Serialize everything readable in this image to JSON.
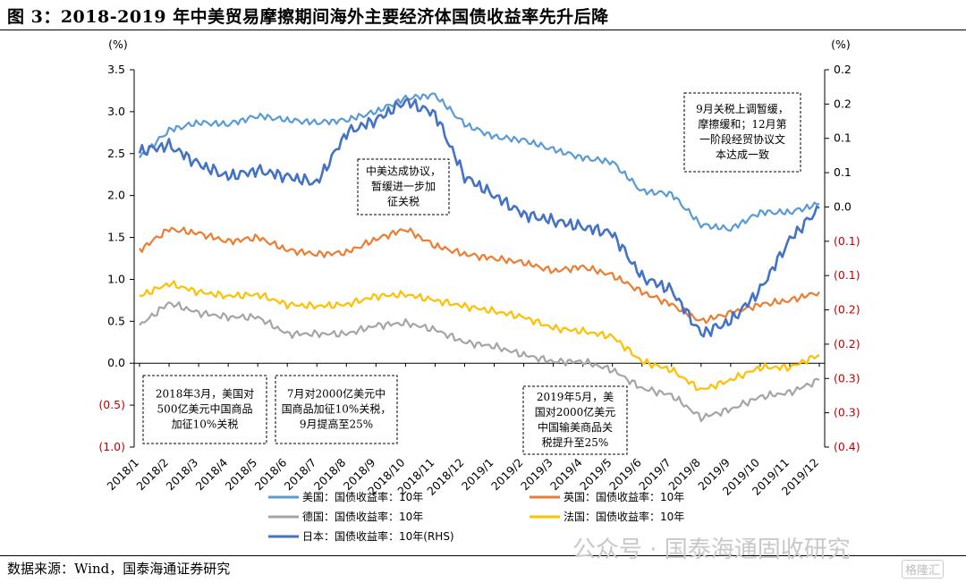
{
  "header": {
    "title": "图 3：2018-2019 年中美贸易摩擦期间海外主要经济体国债收益率先升后降"
  },
  "footer": {
    "source": "数据来源：Wind，国泰海通证券研究"
  },
  "watermark": {
    "text": "公众号 · 国泰海通固收研究",
    "badge": "格隆汇"
  },
  "chart_data": {
    "type": "line",
    "x_ticks": [
      "2018/1",
      "2018/2",
      "2018/3",
      "2018/4",
      "2018/5",
      "2018/6",
      "2018/7",
      "2018/8",
      "2018/9",
      "2018/10",
      "2018/11",
      "2018/12",
      "2019/1",
      "2019/2",
      "2019/3",
      "2019/4",
      "2019/5",
      "2019/6",
      "2019/7",
      "2019/8",
      "2019/9",
      "2019/10",
      "2019/11",
      "2019/12"
    ],
    "left_axis": {
      "unit": "(%)",
      "ylim": [
        -1.0,
        3.5
      ],
      "ticks": [
        "3.5",
        "3.0",
        "2.5",
        "2.0",
        "1.5",
        "1.0",
        "0.5",
        "0.0",
        "(0.5)",
        "(1.0)"
      ]
    },
    "right_axis": {
      "unit": "(%)",
      "ylim": [
        -0.4,
        0.2
      ],
      "ticks": [
        "0.2",
        "0.2",
        "0.1",
        "0.1",
        "0.0",
        "(0.1)",
        "(0.1)",
        "(0.2)",
        "(0.2)",
        "(0.3)",
        "(0.3)",
        "(0.4)"
      ]
    },
    "series": [
      {
        "name": "美国：国债收益率：10年",
        "color": "#5b9bd5",
        "axis": "left",
        "values": [
          2.45,
          2.78,
          2.87,
          2.85,
          2.95,
          2.9,
          2.87,
          2.9,
          3.0,
          3.16,
          3.2,
          2.85,
          2.7,
          2.66,
          2.55,
          2.45,
          2.4,
          2.05,
          2.02,
          1.65,
          1.6,
          1.8,
          1.8,
          1.9
        ]
      },
      {
        "name": "英国：国债收益率：10年",
        "color": "#ed7d31",
        "axis": "left",
        "values": [
          1.35,
          1.6,
          1.55,
          1.45,
          1.5,
          1.35,
          1.3,
          1.32,
          1.48,
          1.6,
          1.4,
          1.3,
          1.25,
          1.2,
          1.1,
          1.15,
          1.05,
          0.85,
          0.7,
          0.5,
          0.6,
          0.7,
          0.75,
          0.85
        ]
      },
      {
        "name": "德国：国债收益率：10年",
        "color": "#a5a5a5",
        "axis": "left",
        "values": [
          0.45,
          0.72,
          0.6,
          0.55,
          0.55,
          0.35,
          0.35,
          0.35,
          0.45,
          0.48,
          0.4,
          0.25,
          0.2,
          0.1,
          0.02,
          0.02,
          -0.08,
          -0.3,
          -0.38,
          -0.65,
          -0.55,
          -0.4,
          -0.35,
          -0.2
        ]
      },
      {
        "name": "法国：国债收益率：10年",
        "color": "#ffc000",
        "axis": "left",
        "values": [
          0.8,
          0.95,
          0.85,
          0.8,
          0.82,
          0.7,
          0.68,
          0.7,
          0.8,
          0.82,
          0.75,
          0.68,
          0.62,
          0.55,
          0.42,
          0.38,
          0.32,
          0.02,
          -0.08,
          -0.32,
          -0.2,
          -0.05,
          -0.05,
          0.1
        ]
      },
      {
        "name": "日本：国债收益率：10年(RHS)",
        "color": "#4472c4",
        "axis": "right",
        "values": [
          0.07,
          0.08,
          0.05,
          0.03,
          0.04,
          0.03,
          0.02,
          0.1,
          0.12,
          0.15,
          0.13,
          0.03,
          0.0,
          -0.03,
          -0.04,
          -0.05,
          -0.06,
          -0.13,
          -0.15,
          -0.22,
          -0.2,
          -0.15,
          -0.07,
          -0.02
        ]
      }
    ],
    "annotations": [
      {
        "lines": [
          "9月关税上调暂缓，",
          "摩擦缓和；12月第",
          "一阶段经贸协议文",
          "本达成一致"
        ]
      },
      {
        "lines": [
          "中美达成协议，",
          "暂缓进一步加",
          "征关税"
        ]
      },
      {
        "lines": [
          "2018年3月，美国对",
          "500亿美元中国商品",
          "加征10%关税"
        ]
      },
      {
        "lines": [
          "7月对2000亿美元中",
          "国商品加征10%关税，",
          "9月提高至25%"
        ]
      },
      {
        "lines": [
          "2019年5月，美",
          "国对2000亿美元",
          "中国输美商品关",
          "税提升至25%"
        ]
      }
    ]
  }
}
